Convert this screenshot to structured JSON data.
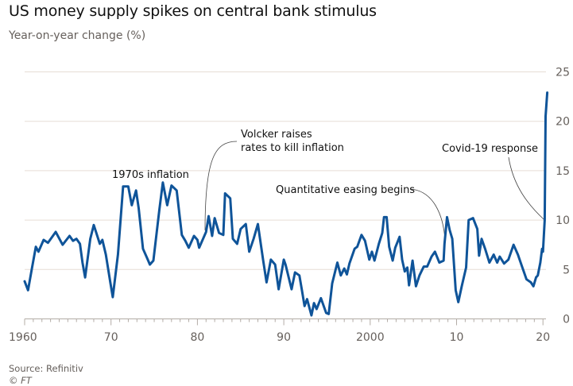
{
  "title": "US money supply spikes on central bank stimulus",
  "subtitle": "Year-on-year change (%)",
  "source": "Source: Refinitiv",
  "credit": "© FT",
  "colors": {
    "line": "#0f5499",
    "grid": "#e6ddd5",
    "text": "#66605c"
  },
  "chart_data": {
    "type": "line",
    "title": "US money supply spikes on central bank stimulus",
    "ylabel": "Year-on-year change (%)",
    "xlabel": "",
    "xlim": [
      1960,
      2020.6
    ],
    "ylim": [
      0,
      25
    ],
    "grid": true,
    "y_axis_side": "right",
    "x_ticks": [
      1960,
      1970,
      1980,
      1990,
      2000,
      2010,
      2020
    ],
    "x_tick_labels": [
      "1960",
      "70",
      "80",
      "90",
      "2000",
      "10",
      "20"
    ],
    "y_ticks": [
      0,
      5,
      10,
      15,
      20,
      25
    ],
    "y_tick_labels": [
      "0",
      "5",
      "10",
      "15",
      "20",
      "25"
    ],
    "series": [
      {
        "x": [
          1960.0,
          1960.4,
          1960.8,
          1961.3,
          1961.6,
          1962.2,
          1962.7,
          1963.6,
          1964.4,
          1965.2,
          1965.6,
          1966.0,
          1966.4,
          1966.7,
          1967.0,
          1967.6,
          1968.0,
          1968.7,
          1969.0,
          1969.4,
          1969.9,
          1970.2,
          1970.8,
          1971.4,
          1972.0,
          1972.4,
          1972.9,
          1973.2,
          1973.7,
          1974.2,
          1974.5,
          1974.9,
          1975.6,
          1976.0,
          1976.5,
          1977.0,
          1977.6,
          1978.2,
          1978.6,
          1979.0,
          1979.6,
          1980.0,
          1980.2,
          1981.0,
          1981.3,
          1981.7,
          1982.0,
          1982.5,
          1983.0,
          1983.2,
          1983.8,
          1984.1,
          1984.6,
          1985.0,
          1985.6,
          1986.0,
          1986.5,
          1987.0,
          1987.6,
          1988.0,
          1988.5,
          1989.0,
          1989.4,
          1990.0,
          1990.2,
          1990.9,
          1991.3,
          1991.8,
          1992.1,
          1992.4,
          1992.7,
          1993.2,
          1993.5,
          1993.8,
          1994.3,
          1994.9,
          1995.2,
          1995.6,
          1996.2,
          1996.6,
          1997.0,
          1997.3,
          1997.6,
          1998.2,
          1998.5,
          1999.0,
          1999.4,
          1999.9,
          2000.2,
          2000.5,
          2001.0,
          2001.4,
          2001.6,
          2001.9,
          2002.2,
          2002.6,
          2002.9,
          2003.4,
          2003.7,
          2004.0,
          2004.3,
          2004.5,
          2004.9,
          2005.3,
          2005.7,
          2006.2,
          2006.6,
          2007.1,
          2007.5,
          2008.0,
          2008.5,
          2008.6,
          2008.9,
          2009.2,
          2009.5,
          2009.9,
          2010.2,
          2010.6,
          2011.1,
          2011.4,
          2011.9,
          2012.4,
          2012.6,
          2012.9,
          2013.3,
          2013.8,
          2014.3,
          2014.7,
          2015.0,
          2015.5,
          2016.0,
          2016.6,
          2017.1,
          2017.5,
          2018.1,
          2018.6,
          2018.9,
          2019.2,
          2019.4,
          2019.7,
          2019.9,
          2020.0,
          2020.2,
          2020.3,
          2020.5
        ],
        "y": [
          3.8,
          2.9,
          4.9,
          7.3,
          6.8,
          8.0,
          7.7,
          8.8,
          7.5,
          8.4,
          7.9,
          8.1,
          7.6,
          5.7,
          4.2,
          8.1,
          9.5,
          7.6,
          8.0,
          6.5,
          3.8,
          2.2,
          6.5,
          13.4,
          13.4,
          11.5,
          13.0,
          11.2,
          7.1,
          6.1,
          5.5,
          5.9,
          11.1,
          13.8,
          11.5,
          13.5,
          13.0,
          8.5,
          7.9,
          7.2,
          8.4,
          8.0,
          7.2,
          8.8,
          10.4,
          8.4,
          10.2,
          8.7,
          8.5,
          12.7,
          12.2,
          8.1,
          7.6,
          9.1,
          9.6,
          6.8,
          8.1,
          9.6,
          6.0,
          3.7,
          6.0,
          5.5,
          3.0,
          6.0,
          5.5,
          3.0,
          4.7,
          4.4,
          2.9,
          1.3,
          2.0,
          0.35,
          1.6,
          1.0,
          2.1,
          0.6,
          0.5,
          3.6,
          5.7,
          4.4,
          5.1,
          4.5,
          5.6,
          7.1,
          7.3,
          8.5,
          7.9,
          6.0,
          6.8,
          5.9,
          7.6,
          8.7,
          10.3,
          10.3,
          7.3,
          5.9,
          7.2,
          8.3,
          6.0,
          4.8,
          5.2,
          3.4,
          5.9,
          3.3,
          4.4,
          5.3,
          5.3,
          6.3,
          6.8,
          5.7,
          5.9,
          7.6,
          10.3,
          9.0,
          8.1,
          2.9,
          1.7,
          3.3,
          5.2,
          10.0,
          10.2,
          9.1,
          6.4,
          8.1,
          7.1,
          5.7,
          6.5,
          5.7,
          6.3,
          5.6,
          6.0,
          7.5,
          6.5,
          5.5,
          4.0,
          3.7,
          3.3,
          4.2,
          4.4,
          5.7,
          7.1,
          6.8,
          10.0,
          20.5,
          22.9
        ]
      }
    ],
    "annotations": [
      {
        "text": [
          "1970s inflation"
        ]
      },
      {
        "text": [
          "Volcker raises",
          "rates to kill inflation"
        ]
      },
      {
        "text": [
          "Quantitative easing begins"
        ]
      },
      {
        "text": [
          "Covid-19 response"
        ]
      }
    ]
  }
}
